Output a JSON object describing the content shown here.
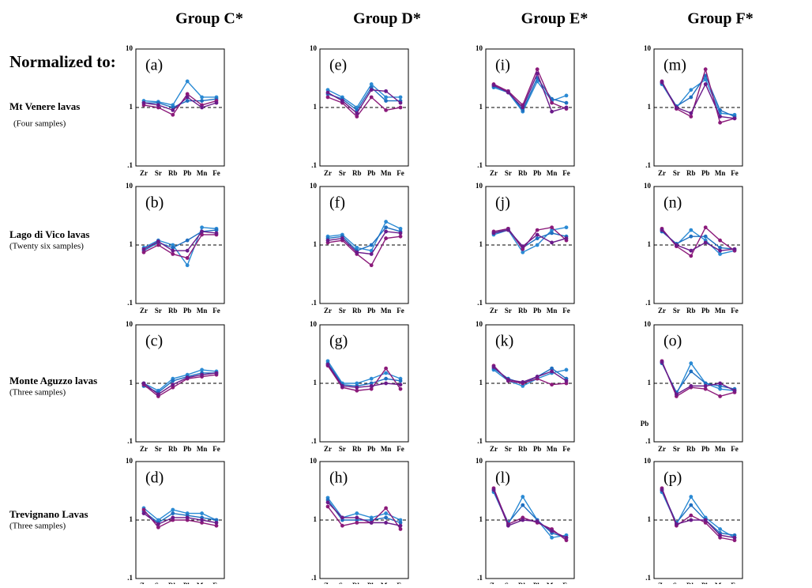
{
  "headers": [
    "Group C*",
    "Group D*",
    "Group E*",
    "Group F*"
  ],
  "normalized_label": "Normalized to:",
  "rows": [
    {
      "name": "Mt Venere lavas",
      "note": "(Four samples)"
    },
    {
      "name": "Lago di Vico lavas",
      "note": "(Twenty six samples)"
    },
    {
      "name": "Monte Aguzzo lavas",
      "note": "(Three samples)"
    },
    {
      "name": "Trevignano Lavas",
      "note": "(Three samples)"
    }
  ],
  "chart_data": [
    {
      "type": "line",
      "label": "(a)",
      "categories": [
        "Zr",
        "Sr",
        "Rb",
        "Pb",
        "Mn",
        "Fe"
      ],
      "ylim": [
        0.1,
        10
      ],
      "yticks": [
        {
          "value": 0.1,
          "label": ".1"
        },
        1,
        10
      ],
      "log_scale": true,
      "reference_line": 1,
      "series": [
        {
          "color": "#2a8ad4",
          "values": [
            1.3,
            1.25,
            1.1,
            2.8,
            1.5,
            1.5
          ]
        },
        {
          "color": "#1f6fc0",
          "values": [
            1.2,
            1.2,
            1.0,
            1.3,
            1.3,
            1.4
          ]
        },
        {
          "color": "#8b1a7a",
          "values": [
            1.1,
            1.0,
            0.75,
            1.7,
            1.1,
            1.3
          ]
        },
        {
          "color": "#6a1a8a",
          "values": [
            1.2,
            1.1,
            0.9,
            1.5,
            1.0,
            1.2
          ]
        }
      ]
    },
    {
      "type": "line",
      "label": "(b)",
      "categories": [
        "Zr",
        "Sr",
        "Rb",
        "Pb",
        "Mn",
        "Fe"
      ],
      "ylim": [
        0.1,
        10
      ],
      "yticks": [
        {
          "value": 0.1,
          "label": ".1"
        },
        1,
        10
      ],
      "log_scale": true,
      "reference_line": 1,
      "series": [
        {
          "color": "#2a8ad4",
          "values": [
            0.9,
            1.2,
            1.0,
            0.45,
            2.0,
            1.9
          ]
        },
        {
          "color": "#1f6fc0",
          "values": [
            0.8,
            1.1,
            0.9,
            1.2,
            1.7,
            1.8
          ]
        },
        {
          "color": "#8b1a7a",
          "values": [
            0.75,
            1.0,
            0.7,
            0.6,
            1.5,
            1.5
          ]
        },
        {
          "color": "#6a1a8a",
          "values": [
            0.85,
            1.15,
            0.8,
            0.8,
            1.7,
            1.6
          ]
        }
      ]
    },
    {
      "type": "line",
      "label": "(c)",
      "categories": [
        "Zr",
        "Sr",
        "Rb",
        "Pb",
        "Mn",
        "Fe"
      ],
      "ylim": [
        0.1,
        10
      ],
      "yticks": [
        {
          "value": 0.1,
          "label": ".1"
        },
        1,
        10
      ],
      "log_scale": true,
      "reference_line": 1,
      "series": [
        {
          "color": "#2a8ad4",
          "values": [
            1.0,
            0.75,
            1.2,
            1.4,
            1.7,
            1.6
          ]
        },
        {
          "color": "#1f6fc0",
          "values": [
            0.9,
            0.7,
            1.1,
            1.3,
            1.5,
            1.5
          ]
        },
        {
          "color": "#8b1a7a",
          "values": [
            0.95,
            0.6,
            0.85,
            1.2,
            1.3,
            1.4
          ]
        },
        {
          "color": "#6a1a8a",
          "values": [
            1.0,
            0.65,
            0.95,
            1.25,
            1.4,
            1.5
          ]
        }
      ]
    },
    {
      "type": "line",
      "label": "(d)",
      "categories": [
        "Zr",
        "Sr",
        "Rb",
        "Pb",
        "Mn",
        "Fe"
      ],
      "ylim": [
        0.1,
        10
      ],
      "yticks": [
        {
          "value": 0.1,
          "label": ".1"
        },
        1,
        10
      ],
      "log_scale": true,
      "reference_line": 1,
      "series": [
        {
          "color": "#2a8ad4",
          "values": [
            1.6,
            1.0,
            1.5,
            1.3,
            1.3,
            1.0
          ]
        },
        {
          "color": "#1f6fc0",
          "values": [
            1.4,
            0.9,
            1.3,
            1.2,
            1.1,
            1.0
          ]
        },
        {
          "color": "#8b1a7a",
          "values": [
            1.5,
            0.75,
            1.0,
            1.0,
            0.9,
            0.8
          ]
        },
        {
          "color": "#6a1a8a",
          "values": [
            1.3,
            0.85,
            1.1,
            1.1,
            1.0,
            0.9
          ]
        }
      ]
    },
    {
      "type": "line",
      "label": "(e)",
      "categories": [
        "Zr",
        "Sr",
        "Rb",
        "Pb",
        "Mn",
        "Fe"
      ],
      "ylim": [
        0.1,
        10
      ],
      "yticks": [
        {
          "value": 0.1,
          "label": ".1"
        },
        1,
        10
      ],
      "log_scale": true,
      "reference_line": 1,
      "series": [
        {
          "color": "#2a8ad4",
          "values": [
            2.0,
            1.5,
            1.0,
            2.5,
            1.5,
            1.5
          ]
        },
        {
          "color": "#1f6fc0",
          "values": [
            1.7,
            1.4,
            0.9,
            2.2,
            1.3,
            1.3
          ]
        },
        {
          "color": "#8b1a7a",
          "values": [
            1.5,
            1.2,
            0.7,
            1.5,
            0.9,
            1.0
          ]
        },
        {
          "color": "#6a1a8a",
          "values": [
            1.8,
            1.3,
            0.8,
            2.0,
            1.9,
            1.2
          ]
        }
      ]
    },
    {
      "type": "line",
      "label": "(f)",
      "categories": [
        "Zr",
        "Sr",
        "Rb",
        "Pb",
        "Mn",
        "Fe"
      ],
      "ylim": [
        0.1,
        10
      ],
      "yticks": [
        {
          "value": 0.1,
          "label": ".1"
        },
        1,
        10
      ],
      "log_scale": true,
      "reference_line": 1,
      "series": [
        {
          "color": "#2a8ad4",
          "values": [
            1.4,
            1.5,
            0.9,
            0.8,
            2.5,
            1.9
          ]
        },
        {
          "color": "#1f6fc0",
          "values": [
            1.3,
            1.4,
            0.8,
            1.0,
            2.0,
            1.7
          ]
        },
        {
          "color": "#8b1a7a",
          "values": [
            1.1,
            1.2,
            0.7,
            0.45,
            1.3,
            1.4
          ]
        },
        {
          "color": "#6a1a8a",
          "values": [
            1.2,
            1.3,
            0.75,
            0.7,
            1.7,
            1.6
          ]
        }
      ]
    },
    {
      "type": "line",
      "label": "(g)",
      "categories": [
        "Zr",
        "Sr",
        "Rb",
        "Pb",
        "Mn",
        "Fe"
      ],
      "ylim": [
        0.1,
        10
      ],
      "yticks": [
        {
          "value": 0.1,
          "label": ".1"
        },
        1,
        10
      ],
      "log_scale": true,
      "reference_line": 1,
      "series": [
        {
          "color": "#2a8ad4",
          "values": [
            2.4,
            1.0,
            1.0,
            1.2,
            1.5,
            1.2
          ]
        },
        {
          "color": "#1f6fc0",
          "values": [
            2.2,
            0.95,
            0.9,
            1.0,
            1.2,
            1.1
          ]
        },
        {
          "color": "#8b1a7a",
          "values": [
            2.0,
            0.85,
            0.75,
            0.8,
            1.8,
            0.8
          ]
        },
        {
          "color": "#6a1a8a",
          "values": [
            2.1,
            0.9,
            0.85,
            0.9,
            1.0,
            0.95
          ]
        }
      ]
    },
    {
      "type": "line",
      "label": "(h)",
      "categories": [
        "Zr",
        "Sr",
        "Rb",
        "Pb",
        "Mn",
        "Fe"
      ],
      "ylim": [
        0.1,
        10
      ],
      "yticks": [
        {
          "value": 0.1,
          "label": ".1"
        },
        1,
        10
      ],
      "log_scale": true,
      "reference_line": 1,
      "series": [
        {
          "color": "#2a8ad4",
          "values": [
            2.4,
            1.1,
            1.3,
            1.1,
            1.3,
            1.0
          ]
        },
        {
          "color": "#1f6fc0",
          "values": [
            2.2,
            1.0,
            1.0,
            1.0,
            1.1,
            0.9
          ]
        },
        {
          "color": "#8b1a7a",
          "values": [
            1.7,
            0.8,
            0.9,
            0.9,
            1.6,
            0.7
          ]
        },
        {
          "color": "#6a1a8a",
          "values": [
            2.0,
            1.1,
            1.1,
            0.9,
            0.9,
            0.8
          ]
        }
      ]
    },
    {
      "type": "line",
      "label": "(i)",
      "categories": [
        "Zr",
        "Sr",
        "Rb",
        "Pb",
        "Mn",
        "Fe"
      ],
      "ylim": [
        0.1,
        10
      ],
      "yticks": [
        {
          "value": 0.1,
          "label": ".1"
        },
        1,
        10
      ],
      "log_scale": true,
      "reference_line": 1,
      "series": [
        {
          "color": "#2a8ad4",
          "values": [
            2.2,
            1.8,
            0.85,
            2.8,
            1.3,
            1.6
          ]
        },
        {
          "color": "#1f6fc0",
          "values": [
            2.3,
            1.9,
            0.9,
            3.2,
            1.4,
            1.2
          ]
        },
        {
          "color": "#8b1a7a",
          "values": [
            2.5,
            1.9,
            1.1,
            4.5,
            1.2,
            0.95
          ]
        },
        {
          "color": "#6a1a8a",
          "values": [
            2.4,
            1.8,
            1.0,
            3.8,
            0.85,
            1.0
          ]
        }
      ]
    },
    {
      "type": "line",
      "label": "(j)",
      "categories": [
        "Zr",
        "Sr",
        "Rb",
        "Pb",
        "Mn",
        "Fe"
      ],
      "ylim": [
        0.1,
        10
      ],
      "yticks": [
        {
          "value": 0.1,
          "label": ".1"
        },
        1,
        10
      ],
      "log_scale": true,
      "reference_line": 1,
      "series": [
        {
          "color": "#2a8ad4",
          "values": [
            1.5,
            1.8,
            0.75,
            1.0,
            1.8,
            2.0
          ]
        },
        {
          "color": "#1f6fc0",
          "values": [
            1.6,
            1.9,
            0.9,
            1.3,
            1.6,
            1.4
          ]
        },
        {
          "color": "#8b1a7a",
          "values": [
            1.7,
            1.9,
            0.85,
            1.8,
            2.0,
            1.2
          ]
        },
        {
          "color": "#6a1a8a",
          "values": [
            1.6,
            1.8,
            0.95,
            1.5,
            1.1,
            1.3
          ]
        }
      ]
    },
    {
      "type": "line",
      "label": "(k)",
      "categories": [
        "Zr",
        "Sr",
        "Rb",
        "Pb",
        "Mn",
        "Fe"
      ],
      "ylim": [
        0.1,
        10
      ],
      "yticks": [
        {
          "value": 0.1,
          "label": ".1"
        },
        1,
        10
      ],
      "log_scale": true,
      "reference_line": 1,
      "series": [
        {
          "color": "#2a8ad4",
          "values": [
            1.7,
            1.1,
            0.9,
            1.2,
            1.5,
            1.7
          ]
        },
        {
          "color": "#1f6fc0",
          "values": [
            1.8,
            1.2,
            1.0,
            1.3,
            1.8,
            1.2
          ]
        },
        {
          "color": "#8b1a7a",
          "values": [
            2.0,
            1.1,
            1.0,
            1.2,
            0.95,
            1.0
          ]
        },
        {
          "color": "#6a1a8a",
          "values": [
            1.9,
            1.15,
            1.05,
            1.3,
            1.6,
            1.1
          ]
        }
      ]
    },
    {
      "type": "line",
      "label": "(l)",
      "categories": [
        "Zr",
        "Sr",
        "Rb",
        "Pb",
        "Mn",
        "Fe"
      ],
      "ylim": [
        0.1,
        10
      ],
      "yticks": [
        {
          "value": 0.1,
          "label": ".1"
        },
        1,
        10
      ],
      "log_scale": true,
      "reference_line": 1,
      "series": [
        {
          "color": "#2a8ad4",
          "values": [
            3.0,
            0.85,
            2.5,
            1.0,
            0.5,
            0.55
          ]
        },
        {
          "color": "#1f6fc0",
          "values": [
            3.2,
            0.9,
            1.8,
            1.0,
            0.6,
            0.5
          ]
        },
        {
          "color": "#8b1a7a",
          "values": [
            3.5,
            0.85,
            1.1,
            0.9,
            0.7,
            0.45
          ]
        },
        {
          "color": "#6a1a8a",
          "values": [
            3.3,
            0.8,
            1.0,
            0.95,
            0.65,
            0.5
          ]
        }
      ]
    },
    {
      "type": "line",
      "label": "(m)",
      "categories": [
        "Zr",
        "Sr",
        "Rb",
        "Pb",
        "Mn",
        "Fe"
      ],
      "ylim": [
        0.1,
        10
      ],
      "yticks": [
        {
          "value": 0.1,
          "label": ".1"
        },
        1,
        10
      ],
      "log_scale": true,
      "reference_line": 1,
      "series": [
        {
          "color": "#2a8ad4",
          "values": [
            2.5,
            1.0,
            2.0,
            3.0,
            0.8,
            0.75
          ]
        },
        {
          "color": "#1f6fc0",
          "values": [
            2.6,
            1.05,
            1.5,
            3.5,
            0.9,
            0.7
          ]
        },
        {
          "color": "#8b1a7a",
          "values": [
            2.8,
            0.95,
            0.7,
            4.5,
            0.55,
            0.65
          ]
        },
        {
          "color": "#6a1a8a",
          "values": [
            2.7,
            1.0,
            0.8,
            2.5,
            0.7,
            0.65
          ]
        }
      ]
    },
    {
      "type": "line",
      "label": "(n)",
      "categories": [
        "Zr",
        "Sr",
        "Rb",
        "Pb",
        "Mn",
        "Fe"
      ],
      "ylim": [
        0.1,
        10
      ],
      "yticks": [
        {
          "value": 0.1,
          "label": ".1"
        },
        1,
        10
      ],
      "log_scale": true,
      "reference_line": 1,
      "series": [
        {
          "color": "#2a8ad4",
          "values": [
            1.8,
            1.0,
            1.8,
            1.2,
            0.7,
            0.8
          ]
        },
        {
          "color": "#1f6fc0",
          "values": [
            1.7,
            1.05,
            1.4,
            1.4,
            0.9,
            0.85
          ]
        },
        {
          "color": "#8b1a7a",
          "values": [
            1.9,
            0.95,
            0.65,
            2.0,
            1.2,
            0.8
          ]
        },
        {
          "color": "#6a1a8a",
          "values": [
            1.8,
            1.0,
            0.8,
            1.1,
            0.8,
            0.85
          ]
        }
      ]
    },
    {
      "type": "line",
      "label": "(o)",
      "annotation": "Pb",
      "categories": [
        "Zr",
        "Sr",
        "Rb",
        "Pb",
        "Mn",
        "Fe"
      ],
      "ylim": [
        0.1,
        10
      ],
      "yticks": [
        {
          "value": 0.1,
          "label": ".1"
        },
        1,
        10
      ],
      "log_scale": true,
      "reference_line": 1,
      "series": [
        {
          "color": "#2a8ad4",
          "values": [
            2.3,
            0.65,
            2.2,
            1.0,
            0.8,
            0.75
          ]
        },
        {
          "color": "#1f6fc0",
          "values": [
            2.2,
            0.7,
            1.6,
            1.0,
            0.9,
            0.8
          ]
        },
        {
          "color": "#8b1a7a",
          "values": [
            2.4,
            0.6,
            0.85,
            0.8,
            0.6,
            0.7
          ]
        },
        {
          "color": "#6a1a8a",
          "values": [
            2.3,
            0.65,
            0.9,
            0.9,
            1.0,
            0.75
          ]
        }
      ]
    },
    {
      "type": "line",
      "label": "(p)",
      "categories": [
        "Zr",
        "Sr",
        "Rb",
        "Pb",
        "Mn",
        "Fe"
      ],
      "ylim": [
        0.1,
        10
      ],
      "yticks": [
        {
          "value": 0.1,
          "label": ".1"
        },
        1,
        10
      ],
      "log_scale": true,
      "reference_line": 1,
      "series": [
        {
          "color": "#2a8ad4",
          "values": [
            3.0,
            0.85,
            2.5,
            1.1,
            0.7,
            0.5
          ]
        },
        {
          "color": "#1f6fc0",
          "values": [
            3.2,
            0.9,
            1.8,
            1.0,
            0.6,
            0.55
          ]
        },
        {
          "color": "#8b1a7a",
          "values": [
            3.5,
            0.8,
            1.2,
            0.9,
            0.5,
            0.45
          ]
        },
        {
          "color": "#6a1a8a",
          "values": [
            3.3,
            0.85,
            1.0,
            1.0,
            0.55,
            0.5
          ]
        }
      ]
    }
  ]
}
